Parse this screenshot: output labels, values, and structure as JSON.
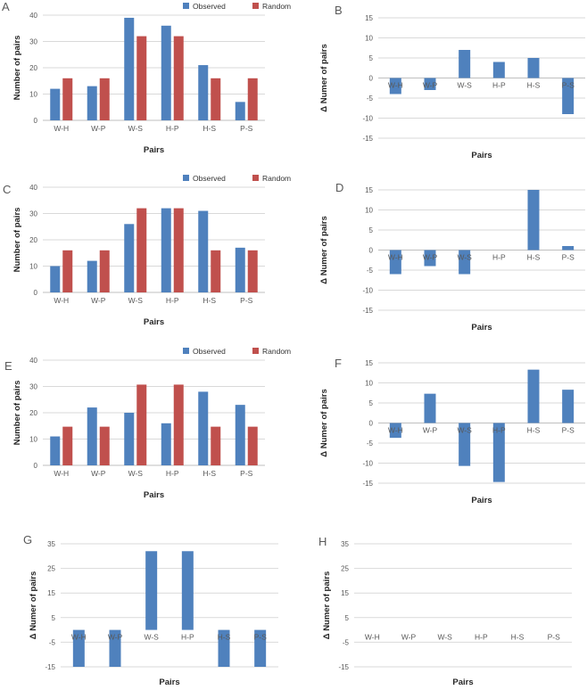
{
  "figure": {
    "background": "#ffffff",
    "series_colors": {
      "observed": "#4F81BD",
      "random": "#C0504D"
    },
    "grid_color": "#D9D9D9",
    "axis_color": "#BFBFBF",
    "tick_text_color": "#595959",
    "title_text_color": "#262626",
    "legend": {
      "observed_label": "Observed",
      "random_label": "Random"
    }
  },
  "chart_data": [
    {
      "panel": "A",
      "type": "grouped_bar",
      "categories": [
        "W-H",
        "W-P",
        "W-S",
        "H-P",
        "H-S",
        "P-S"
      ],
      "series": [
        {
          "name": "Observed",
          "color": "#4F81BD",
          "values": [
            12,
            13,
            39,
            36,
            21,
            7
          ]
        },
        {
          "name": "Random",
          "color": "#C0504D",
          "values": [
            16,
            16,
            32,
            32,
            16,
            16
          ]
        }
      ],
      "xlabel": "Pairs",
      "ylabel": "Number of pairs",
      "ylim": [
        0,
        40
      ],
      "yticks": [
        0,
        10,
        20,
        30,
        40
      ],
      "grid": true,
      "legend": true,
      "legend_position": "top-right"
    },
    {
      "panel": "B",
      "type": "bar",
      "categories": [
        "W-H",
        "W-P",
        "W-S",
        "H-P",
        "H-S",
        "P-S"
      ],
      "series": [
        {
          "name": "Delta",
          "color": "#4F81BD",
          "values": [
            -4,
            -3,
            7,
            4,
            5,
            -9
          ]
        }
      ],
      "xlabel": "Pairs",
      "ylabel": "Δ Numer of pairs",
      "ylim": [
        -15,
        15
      ],
      "yticks": [
        -15,
        -10,
        -5,
        0,
        5,
        10,
        15
      ],
      "grid": true,
      "legend": false
    },
    {
      "panel": "C",
      "type": "grouped_bar",
      "categories": [
        "W-H",
        "W-P",
        "W-S",
        "H-P",
        "H-S",
        "P-S"
      ],
      "series": [
        {
          "name": "Observed",
          "color": "#4F81BD",
          "values": [
            10,
            12,
            26,
            32,
            31,
            17
          ]
        },
        {
          "name": "Random",
          "color": "#C0504D",
          "values": [
            16,
            16,
            32,
            32,
            16,
            16
          ]
        }
      ],
      "xlabel": "Pairs",
      "ylabel": "Number of pairs",
      "ylim": [
        0,
        40
      ],
      "yticks": [
        0,
        10,
        20,
        30,
        40
      ],
      "grid": true,
      "legend": true,
      "legend_position": "top-right"
    },
    {
      "panel": "D",
      "type": "bar",
      "categories": [
        "W-H",
        "W-P",
        "W-S",
        "H-P",
        "H-S",
        "P-S"
      ],
      "series": [
        {
          "name": "Delta",
          "color": "#4F81BD",
          "values": [
            -6,
            -4,
            -6,
            0,
            15,
            1
          ]
        }
      ],
      "xlabel": "Pairs",
      "ylabel": "Δ Numer of pairs",
      "ylim": [
        -15,
        15
      ],
      "yticks": [
        -15,
        -10,
        -5,
        0,
        5,
        10,
        15
      ],
      "grid": true,
      "legend": false
    },
    {
      "panel": "E",
      "type": "grouped_bar",
      "categories": [
        "W-H",
        "W-P",
        "W-S",
        "H-P",
        "H-S",
        "P-S"
      ],
      "series": [
        {
          "name": "Observed",
          "color": "#4F81BD",
          "values": [
            11,
            22,
            20,
            16,
            28,
            23
          ]
        },
        {
          "name": "Random",
          "color": "#C0504D",
          "values": [
            14.7,
            14.7,
            30.7,
            30.7,
            14.7,
            14.7
          ]
        }
      ],
      "xlabel": "Pairs",
      "ylabel": "Number of pairs",
      "ylim": [
        0,
        40
      ],
      "yticks": [
        0,
        10,
        20,
        30,
        40
      ],
      "grid": true,
      "legend": true,
      "legend_position": "top-right"
    },
    {
      "panel": "F",
      "type": "bar",
      "categories": [
        "W-H",
        "W-P",
        "W-S",
        "H-P",
        "H-S",
        "P-S"
      ],
      "series": [
        {
          "name": "Delta",
          "color": "#4F81BD",
          "values": [
            -3.7,
            7.3,
            -10.7,
            -14.7,
            13.3,
            8.3
          ]
        }
      ],
      "xlabel": "Pairs",
      "ylabel": "Δ Numer of pairs",
      "ylim": [
        -15,
        15
      ],
      "yticks": [
        -15,
        -10,
        -5,
        0,
        5,
        10,
        15
      ],
      "grid": true,
      "legend": false
    },
    {
      "panel": "G",
      "type": "bar",
      "categories": [
        "W-H",
        "W-P",
        "W-S",
        "H-P",
        "H-S",
        "P-S"
      ],
      "series": [
        {
          "name": "Delta",
          "color": "#4F81BD",
          "values": [
            -15,
            -15,
            32,
            32,
            -15,
            -15
          ]
        }
      ],
      "xlabel": "Pairs",
      "ylabel": "Δ Numer of pairs",
      "ylim": [
        -15,
        35
      ],
      "yticks": [
        -15,
        -5,
        5,
        15,
        25,
        35
      ],
      "grid": true,
      "legend": false
    },
    {
      "panel": "H",
      "type": "bar",
      "categories": [
        "W-H",
        "W-P",
        "W-S",
        "H-P",
        "H-S",
        "P-S"
      ],
      "series": [
        {
          "name": "Delta",
          "color": "#4F81BD",
          "values": [
            0,
            0,
            0,
            0,
            0,
            0
          ]
        }
      ],
      "xlabel": "Pairs",
      "ylabel": "Δ Numer of pairs",
      "ylim": [
        -15,
        35
      ],
      "yticks": [
        -15,
        -5,
        5,
        15,
        25,
        35
      ],
      "grid": true,
      "legend": false
    }
  ]
}
